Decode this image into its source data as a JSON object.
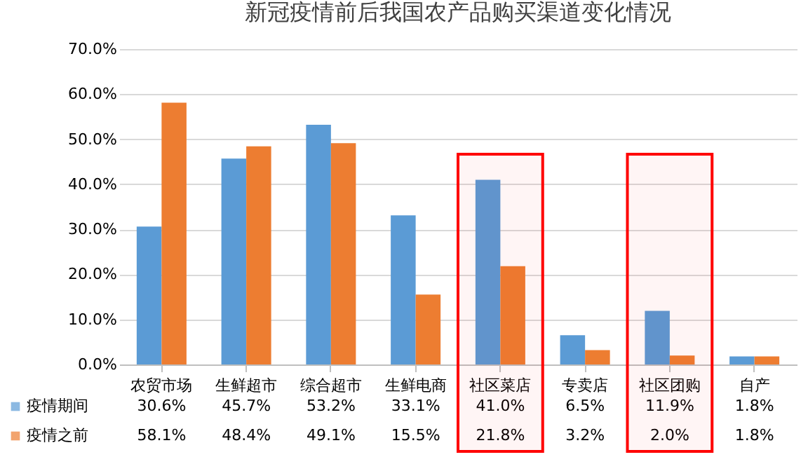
{
  "chart_data": {
    "type": "bar",
    "title": "新冠疫情前后我国农产品购买渠道变化情况",
    "categories": [
      "农贸市场",
      "生鲜超市",
      "综合超市",
      "生鲜电商",
      "社区菜店",
      "专卖店",
      "社区团购",
      "自产"
    ],
    "series": [
      {
        "name": "疫情期间",
        "color": "#5b9bd5",
        "values": [
          30.6,
          45.7,
          53.2,
          33.1,
          41.0,
          6.5,
          11.9,
          1.8
        ],
        "value_labels": [
          "30.6%",
          "45.7%",
          "53.2%",
          "33.1%",
          "41.0%",
          "6.5%",
          "11.9%",
          "1.8%"
        ]
      },
      {
        "name": "疫情之前",
        "color": "#ed7d31",
        "values": [
          58.1,
          48.4,
          49.1,
          15.5,
          21.8,
          3.2,
          2.0,
          1.8
        ],
        "value_labels": [
          "58.1%",
          "48.4%",
          "49.1%",
          "15.5%",
          "21.8%",
          "3.2%",
          "2.0%",
          "1.8%"
        ]
      }
    ],
    "ylim": [
      0,
      70
    ],
    "yticks": [
      {
        "value": 0,
        "label": "0.0%"
      },
      {
        "value": 10,
        "label": "10.0%"
      },
      {
        "value": 20,
        "label": "20.0%"
      },
      {
        "value": 30,
        "label": "30.0%"
      },
      {
        "value": 40,
        "label": "40.0%"
      },
      {
        "value": 50,
        "label": "50.0%"
      },
      {
        "value": 60,
        "label": "60.0%"
      },
      {
        "value": 70,
        "label": "70.0%"
      }
    ],
    "grid": "y",
    "legend": "bottom left",
    "bands": [
      {
        "axis": "x",
        "from": "社区菜店",
        "to": "社区菜店",
        "color": "#ff0000"
      },
      {
        "axis": "x",
        "from": "社区团购",
        "to": "社区团购",
        "color": "#ff0000"
      }
    ]
  }
}
